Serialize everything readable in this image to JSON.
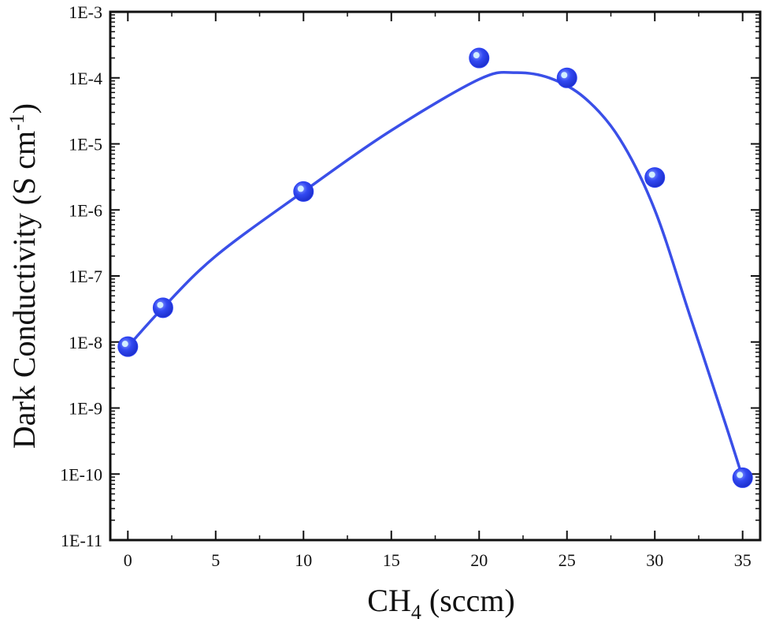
{
  "chart_data": {
    "type": "scatter",
    "xlabel": "CH",
    "xlabel_subscript": "4",
    "xlabel_unit": " (sccm)",
    "ylabel": "Dark Conductivity (S cm",
    "ylabel_superscript": "-1",
    "ylabel_close": ")",
    "xlim": [
      -1,
      36
    ],
    "ylim": [
      1e-11,
      0.001
    ],
    "y_scale": "log",
    "x_ticks": [
      0,
      5,
      10,
      15,
      20,
      25,
      30,
      35
    ],
    "x_tick_labels": [
      "0",
      "5",
      "10",
      "15",
      "20",
      "25",
      "30",
      "35"
    ],
    "y_ticks": [
      1e-11,
      1e-10,
      1e-09,
      1e-08,
      1e-07,
      1e-06,
      1e-05,
      0.0001,
      0.001
    ],
    "y_tick_labels": [
      "1E-11",
      "1E-10",
      "1E-9",
      "1E-8",
      "1E-7",
      "1E-6",
      "1E-5",
      "1E-4",
      "1E-3"
    ],
    "grid": false,
    "colors": {
      "marker": "#2a3ff0",
      "line": "#3a4fe8",
      "highlight": "#d8f4ff"
    },
    "series": [
      {
        "x": [
          0,
          2,
          10,
          20,
          25,
          30,
          35
        ],
        "y": [
          8.5e-09,
          3.3e-08,
          1.9e-06,
          0.0002,
          0.0001,
          3.1e-06,
          8.8e-11
        ]
      }
    ],
    "fit_curve": {
      "x": [
        0,
        2,
        5,
        10,
        15,
        20,
        22,
        24,
        26,
        28,
        30,
        32,
        34,
        35
      ],
      "y": [
        8.5e-09,
        3.3e-08,
        2e-07,
        1.9e-06,
        1.6e-05,
        9.5e-05,
        0.00012,
        0.0001,
        5e-05,
        1.2e-05,
        1e-06,
        2.5e-08,
        6e-10,
        8.8e-11
      ]
    }
  }
}
